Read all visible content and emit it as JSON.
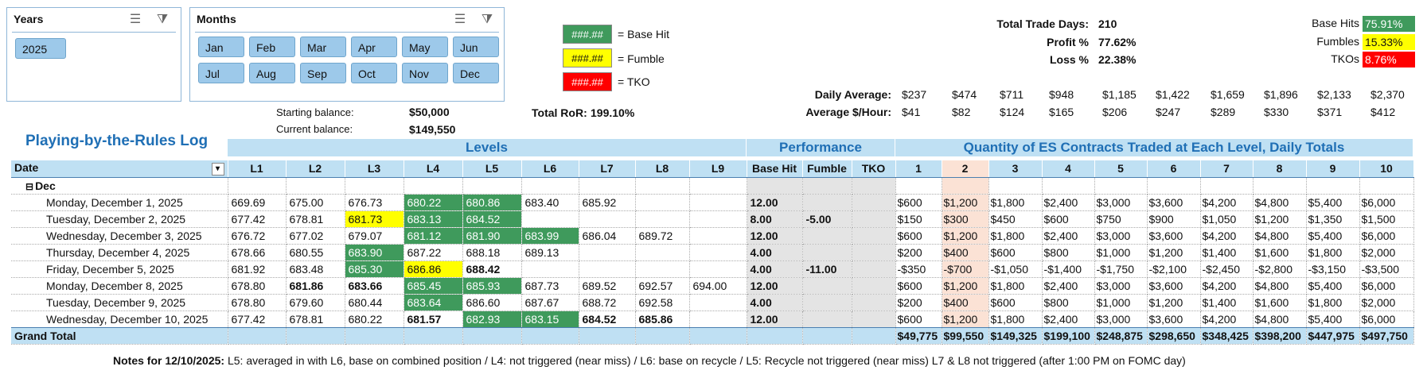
{
  "slicer_years": {
    "title": "Years",
    "items": [
      "2025"
    ]
  },
  "slicer_months": {
    "title": "Months",
    "items": [
      "Jan",
      "Feb",
      "Mar",
      "Apr",
      "May",
      "Jun",
      "Jul",
      "Aug",
      "Sep",
      "Oct",
      "Nov",
      "Dec"
    ]
  },
  "legend": [
    {
      "swatch": "###.##",
      "label": "= Base Hit",
      "color": "#3f9a5c"
    },
    {
      "swatch": "###.##",
      "label": "= Fumble",
      "color": "#ffff00"
    },
    {
      "swatch": "###.##",
      "label": "= TKO",
      "color": "#ff0000"
    }
  ],
  "balances": {
    "starting_label": "Starting balance:",
    "starting_value": "$50,000",
    "current_label": "Current balance:",
    "current_value": "$149,550",
    "ror_label": "Total RoR:",
    "ror_value": "199.10%"
  },
  "summary": {
    "trade_days_label": "Total Trade Days:",
    "trade_days_value": "210",
    "profit_label": "Profit %",
    "profit_value": "77.62%",
    "loss_label": "Loss %",
    "loss_value": "22.38%"
  },
  "rates": [
    {
      "label": "Base Hits",
      "value": "75.91%",
      "color": "#3f9a5c"
    },
    {
      "label": "Fumbles",
      "value": "15.33%",
      "color": "#ffff00"
    },
    {
      "label": "TKOs",
      "value": "8.76%",
      "color": "#ff0000"
    }
  ],
  "daily_average": {
    "label": "Daily Average:",
    "values": [
      "$237",
      "$474",
      "$711",
      "$948",
      "$1,185",
      "$1,422",
      "$1,659",
      "$1,896",
      "$2,133",
      "$2,370"
    ]
  },
  "avg_hour": {
    "label": "Average $/Hour:",
    "values": [
      "$41",
      "$82",
      "$124",
      "$165",
      "$206",
      "$247",
      "$289",
      "$330",
      "$371",
      "$412"
    ]
  },
  "log_title": "Playing-by-the-Rules Log",
  "group_headers": {
    "levels": "Levels",
    "performance": "Performance",
    "quantity": "Quantity of ES Contracts Traded at Each Level, Daily Totals"
  },
  "columns": {
    "date": "Date",
    "levels": [
      "L1",
      "L2",
      "L3",
      "L4",
      "L5",
      "L6",
      "L7",
      "L8",
      "L9"
    ],
    "performance": [
      "Base Hit",
      "Fumble",
      "TKO"
    ],
    "quantity": [
      "1",
      "2",
      "3",
      "4",
      "5",
      "6",
      "7",
      "8",
      "9",
      "10"
    ]
  },
  "month_group": "Dec",
  "rows": [
    {
      "date": "Monday, December 1, 2025",
      "levels": [
        "669.69",
        "675.00",
        "676.73",
        "680.22",
        "680.86",
        "683.40",
        "685.92",
        "",
        ""
      ],
      "perf": [
        "12.00",
        "",
        ""
      ],
      "qty": [
        "$600",
        "$1,200",
        "$1,800",
        "$2,400",
        "$3,000",
        "$3,600",
        "$4,200",
        "$4,800",
        "$5,400",
        "$6,000"
      ]
    },
    {
      "date": "Tuesday, December 2, 2025",
      "levels": [
        "677.42",
        "678.81",
        "681.73",
        "683.13",
        "684.52",
        "",
        "",
        "",
        ""
      ],
      "perf": [
        "8.00",
        "-5.00",
        ""
      ],
      "qty": [
        "$150",
        "$300",
        "$450",
        "$600",
        "$750",
        "$900",
        "$1,050",
        "$1,200",
        "$1,350",
        "$1,500"
      ]
    },
    {
      "date": "Wednesday, December 3, 2025",
      "levels": [
        "676.72",
        "677.02",
        "679.07",
        "681.12",
        "681.90",
        "683.99",
        "686.04",
        "689.72",
        ""
      ],
      "perf": [
        "12.00",
        "",
        ""
      ],
      "qty": [
        "$600",
        "$1,200",
        "$1,800",
        "$2,400",
        "$3,000",
        "$3,600",
        "$4,200",
        "$4,800",
        "$5,400",
        "$6,000"
      ]
    },
    {
      "date": "Thursday, December 4, 2025",
      "levels": [
        "678.66",
        "680.55",
        "683.90",
        "687.22",
        "688.18",
        "689.13",
        "",
        "",
        ""
      ],
      "perf": [
        "4.00",
        "",
        ""
      ],
      "qty": [
        "$200",
        "$400",
        "$600",
        "$800",
        "$1,000",
        "$1,200",
        "$1,400",
        "$1,600",
        "$1,800",
        "$2,000"
      ]
    },
    {
      "date": "Friday, December 5, 2025",
      "levels": [
        "681.92",
        "683.48",
        "685.30",
        "686.86",
        "688.42",
        "",
        "",
        "",
        ""
      ],
      "perf": [
        "4.00",
        "-11.00",
        ""
      ],
      "qty": [
        "-$350",
        "-$700",
        "-$1,050",
        "-$1,400",
        "-$1,750",
        "-$2,100",
        "-$2,450",
        "-$2,800",
        "-$3,150",
        "-$3,500"
      ]
    },
    {
      "date": "Monday, December 8, 2025",
      "levels": [
        "678.80",
        "681.86",
        "683.66",
        "685.45",
        "685.93",
        "687.73",
        "689.52",
        "692.57",
        "694.00"
      ],
      "perf": [
        "12.00",
        "",
        ""
      ],
      "qty": [
        "$600",
        "$1,200",
        "$1,800",
        "$2,400",
        "$3,000",
        "$3,600",
        "$4,200",
        "$4,800",
        "$5,400",
        "$6,000"
      ]
    },
    {
      "date": "Tuesday, December 9, 2025",
      "levels": [
        "678.80",
        "679.60",
        "680.44",
        "683.64",
        "686.60",
        "687.67",
        "688.72",
        "692.58",
        ""
      ],
      "perf": [
        "4.00",
        "",
        ""
      ],
      "qty": [
        "$200",
        "$400",
        "$600",
        "$800",
        "$1,000",
        "$1,200",
        "$1,400",
        "$1,600",
        "$1,800",
        "$2,000"
      ]
    },
    {
      "date": "Wednesday, December 10, 2025",
      "levels": [
        "677.42",
        "678.81",
        "680.22",
        "681.57",
        "682.93",
        "683.15",
        "684.52",
        "685.86",
        ""
      ],
      "perf": [
        "12.00",
        "",
        ""
      ],
      "qty": [
        "$600",
        "$1,200",
        "$1,800",
        "$2,400",
        "$3,000",
        "$3,600",
        "$4,200",
        "$4,800",
        "$5,400",
        "$6,000"
      ]
    }
  ],
  "grand_total": {
    "label": "Grand Total",
    "qty": [
      "$49,775",
      "$99,550",
      "$149,325",
      "$199,100",
      "$248,875",
      "$298,650",
      "$348,425",
      "$398,200",
      "$447,975",
      "$497,750"
    ]
  },
  "notes": {
    "label": "Notes for 12/10/2025:",
    "text": "L5: averaged in with L6, base on combined position / L4: not triggered (near miss) / L6: base on recycle / L5: Recycle not triggered (near miss) L7 & L8 not triggered (after 1:00 PM on FOMC day)"
  },
  "colors": {
    "base_hit": "#3f9a5c",
    "fumble": "#ffff00",
    "tko": "#ff0000",
    "header_fill": "#bfe0f3",
    "title_blue": "#1f6fb5"
  }
}
